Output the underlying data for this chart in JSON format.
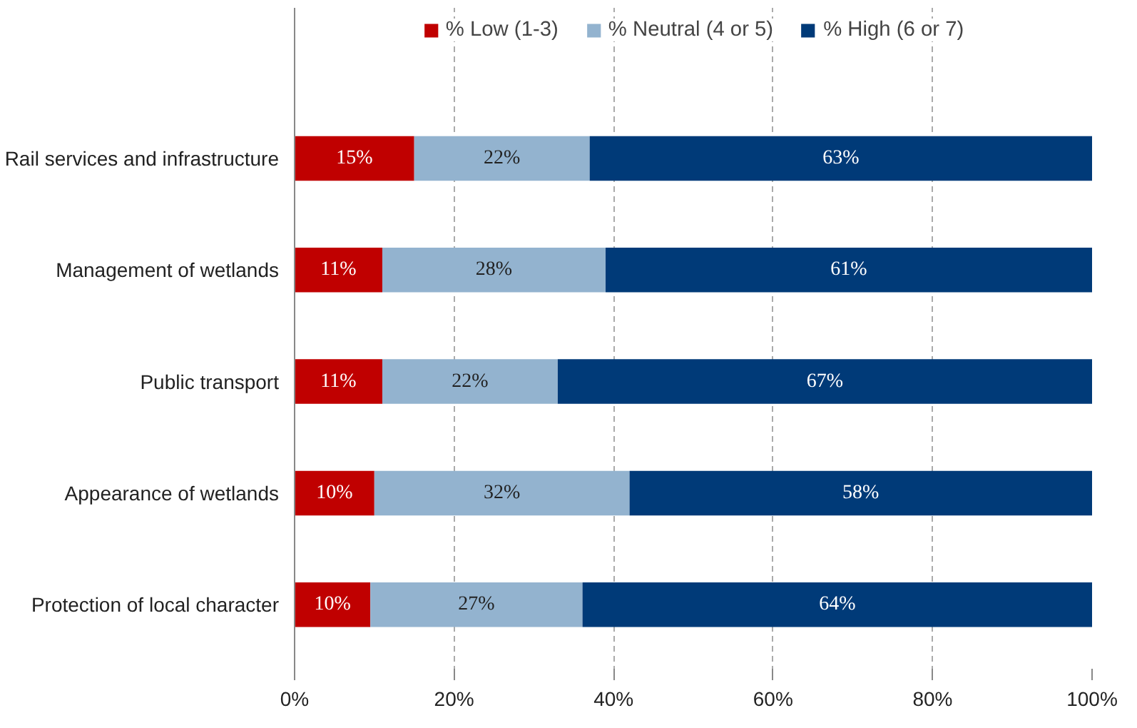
{
  "chart_data": {
    "type": "bar",
    "orientation": "horizontal",
    "stacked": true,
    "categories": [
      "Rail services and infrastructure",
      "Management of wetlands",
      "Public transport",
      "Appearance of wetlands",
      "Protection of local character"
    ],
    "series": [
      {
        "name": "% Low (1-3)",
        "color": "#c00000",
        "values": [
          15,
          11,
          11,
          10,
          9.5
        ],
        "value_labels": [
          "15%",
          "11%",
          "11%",
          "10%",
          "10%"
        ]
      },
      {
        "name": "% Neutral (4 or 5)",
        "color": "#93b3cf",
        "values": [
          22,
          28,
          22,
          32,
          26.6
        ],
        "value_labels": [
          "22%",
          "28%",
          "22%",
          "32%",
          "27%"
        ]
      },
      {
        "name": "% High (6 or 7)",
        "color": "#003a78",
        "values": [
          63,
          61,
          67,
          58,
          63.9
        ],
        "value_labels": [
          "63%",
          "61%",
          "67%",
          "58%",
          "64%"
        ]
      }
    ],
    "xlim": [
      0,
      100
    ],
    "xticks": [
      {
        "value": 0,
        "label": "0%"
      },
      {
        "value": 20,
        "label": "20%"
      },
      {
        "value": 40,
        "label": "40%"
      },
      {
        "value": 60,
        "label": "60%"
      },
      {
        "value": 80,
        "label": "80%"
      },
      {
        "value": 100,
        "label": "100%"
      }
    ],
    "grid": "x",
    "legend": "top"
  }
}
